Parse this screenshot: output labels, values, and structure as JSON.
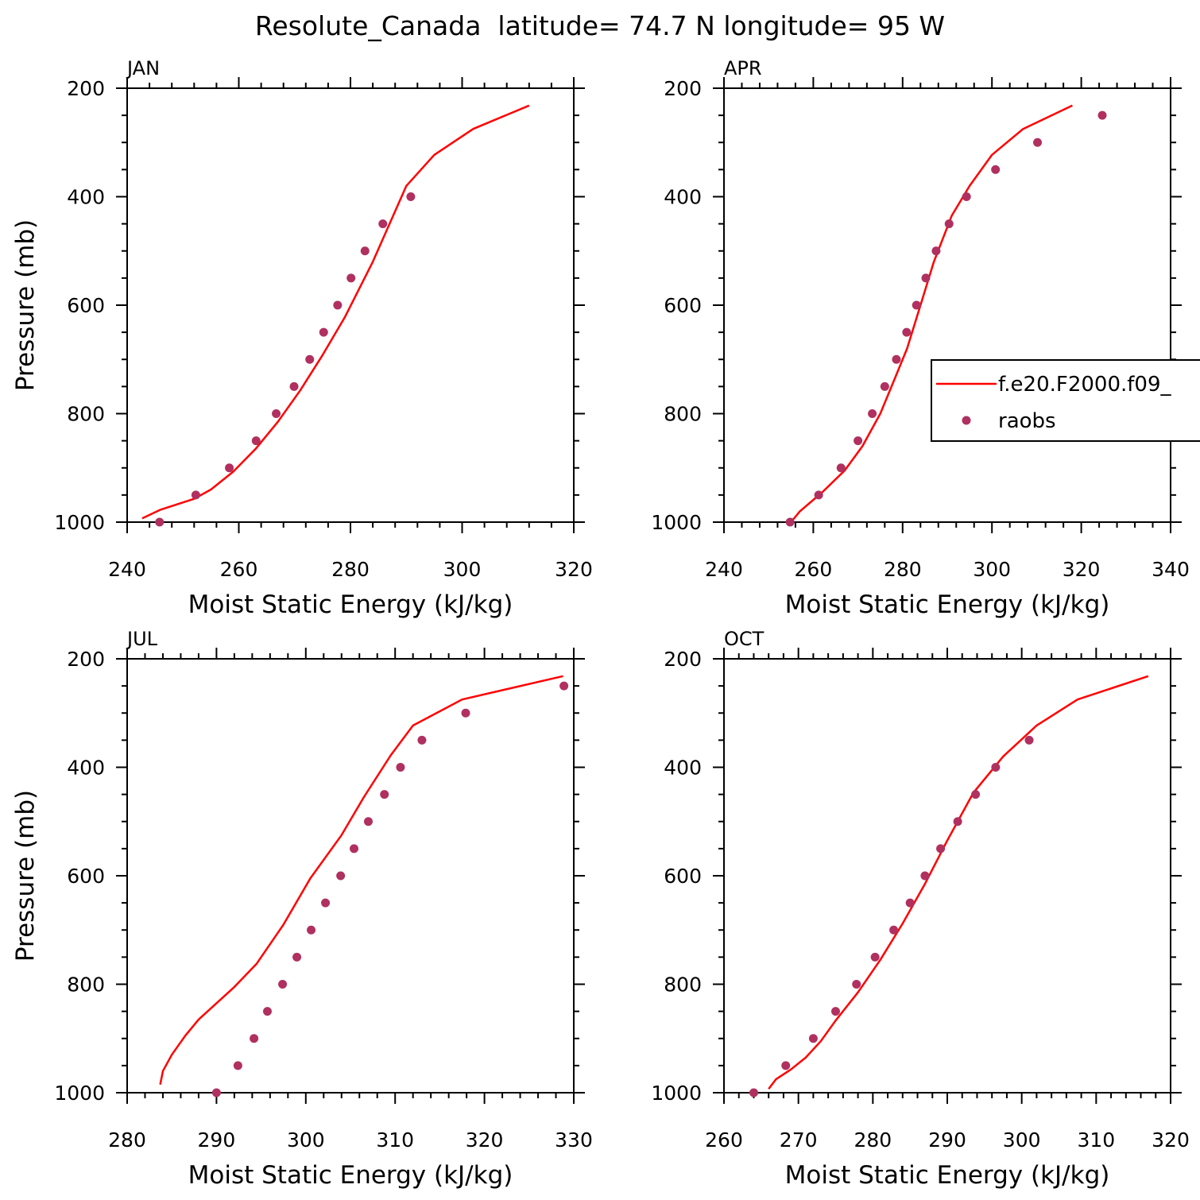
{
  "figure": {
    "title": "Resolute_Canada  latitude= 74.7 N longitude= 95 W",
    "colors": {
      "model": "#ff0000",
      "obs": "#b03060",
      "axes": "#000000"
    }
  },
  "legend": {
    "entries": [
      {
        "label": "f.e20.F2000.f09_",
        "style": "line",
        "color": "#ff0000"
      },
      {
        "label": "raobs",
        "style": "marker",
        "color": "#b03060"
      }
    ]
  },
  "chart_data": [
    {
      "type": "line",
      "panel": "JAN",
      "xlabel": "Moist Static Energy (kJ/kg)",
      "ylabel": "Pressure (mb)",
      "xlim": [
        240,
        320
      ],
      "ylim": [
        1000,
        200
      ],
      "xticks": [
        240,
        260,
        280,
        300,
        320
      ],
      "yticks": [
        200,
        400,
        600,
        800,
        1000
      ],
      "series": [
        {
          "name": "f.e20.F2000.f09_",
          "kind": "line",
          "x": [
            242.7,
            246,
            252,
            255,
            259,
            263,
            267,
            271,
            275,
            279,
            284,
            290,
            295,
            302,
            312
          ],
          "y": [
            993,
            977,
            957,
            940,
            907,
            865,
            815,
            757,
            692,
            622,
            520,
            380,
            323,
            275,
            232
          ]
        },
        {
          "name": "raobs",
          "kind": "marker",
          "x": [
            245.8,
            252.3,
            258.3,
            263.1,
            266.7,
            269.9,
            272.7,
            275.2,
            277.7,
            280.1,
            282.6,
            285.8,
            290.8
          ],
          "y": [
            1000,
            950,
            900,
            850,
            800,
            750,
            700,
            650,
            600,
            550,
            500,
            450,
            400
          ]
        }
      ]
    },
    {
      "type": "line",
      "panel": "APR",
      "xlabel": "Moist Static Energy (kJ/kg)",
      "ylabel": "",
      "xlim": [
        240,
        340
      ],
      "ylim": [
        1000,
        200
      ],
      "xticks": [
        240,
        260,
        280,
        300,
        320,
        340
      ],
      "yticks": [
        200,
        400,
        600,
        800,
        1000
      ],
      "series": [
        {
          "name": "f.e20.F2000.f09_",
          "kind": "line",
          "x": [
            255,
            257,
            262,
            267,
            271,
            275,
            278,
            281,
            284,
            287,
            291,
            295,
            300,
            307,
            318
          ],
          "y": [
            1000,
            980,
            945,
            905,
            860,
            800,
            740,
            680,
            600,
            520,
            435,
            380,
            323,
            275,
            232
          ]
        },
        {
          "name": "raobs",
          "kind": "marker",
          "x": [
            254.8,
            261.2,
            266.2,
            270,
            273.2,
            276,
            278.6,
            280.9,
            283.1,
            285.2,
            287.5,
            290.4,
            294.3,
            300.8,
            310.2,
            324.7
          ],
          "y": [
            1000,
            950,
            900,
            850,
            800,
            750,
            700,
            650,
            600,
            550,
            500,
            450,
            400,
            350,
            300,
            250
          ]
        }
      ]
    },
    {
      "type": "line",
      "panel": "JUL",
      "xlabel": "Moist Static Energy (kJ/kg)",
      "ylabel": "Pressure (mb)",
      "xlim": [
        280,
        330
      ],
      "ylim": [
        1000,
        200
      ],
      "xticks": [
        280,
        290,
        300,
        310,
        320,
        330
      ],
      "yticks": [
        200,
        400,
        600,
        800,
        1000
      ],
      "series": [
        {
          "name": "f.e20.F2000.f09_",
          "kind": "line",
          "x": [
            283.7,
            284,
            285,
            286.5,
            288,
            290,
            292,
            294.5,
            297.5,
            300.5,
            304,
            306.5,
            309.5,
            312,
            317.5,
            328.8
          ],
          "y": [
            985,
            960,
            930,
            895,
            865,
            835,
            805,
            762,
            690,
            605,
            525,
            455,
            378,
            323,
            275,
            232
          ]
        },
        {
          "name": "raobs",
          "kind": "marker",
          "x": [
            290,
            292.4,
            294.2,
            295.7,
            297.4,
            299,
            300.6,
            302.2,
            303.9,
            305.4,
            307,
            308.8,
            310.6,
            313,
            317.9,
            328.9
          ],
          "y": [
            1000,
            950,
            900,
            850,
            800,
            750,
            700,
            650,
            600,
            550,
            500,
            450,
            400,
            350,
            300,
            250
          ]
        }
      ]
    },
    {
      "type": "line",
      "panel": "OCT",
      "xlabel": "Moist Static Energy (kJ/kg)",
      "ylabel": "",
      "xlim": [
        260,
        320
      ],
      "ylim": [
        1000,
        200
      ],
      "xticks": [
        260,
        270,
        280,
        290,
        300,
        310,
        320
      ],
      "yticks": [
        200,
        400,
        600,
        800,
        1000
      ],
      "series": [
        {
          "name": "f.e20.F2000.f09_",
          "kind": "line",
          "x": [
            266,
            267,
            269,
            271,
            273,
            275,
            278,
            281,
            284,
            287,
            290,
            293.5,
            297.5,
            302,
            307.5,
            317
          ],
          "y": [
            993,
            975,
            957,
            935,
            905,
            867,
            815,
            755,
            688,
            615,
            535,
            447,
            380,
            323,
            275,
            232
          ]
        },
        {
          "name": "raobs",
          "kind": "marker",
          "x": [
            264,
            268.3,
            272,
            275,
            277.8,
            280.3,
            282.8,
            285,
            287,
            289.1,
            291.4,
            293.8,
            296.5,
            301
          ],
          "y": [
            1000,
            950,
            900,
            850,
            800,
            750,
            700,
            650,
            600,
            550,
            500,
            450,
            400,
            350
          ]
        }
      ]
    }
  ]
}
